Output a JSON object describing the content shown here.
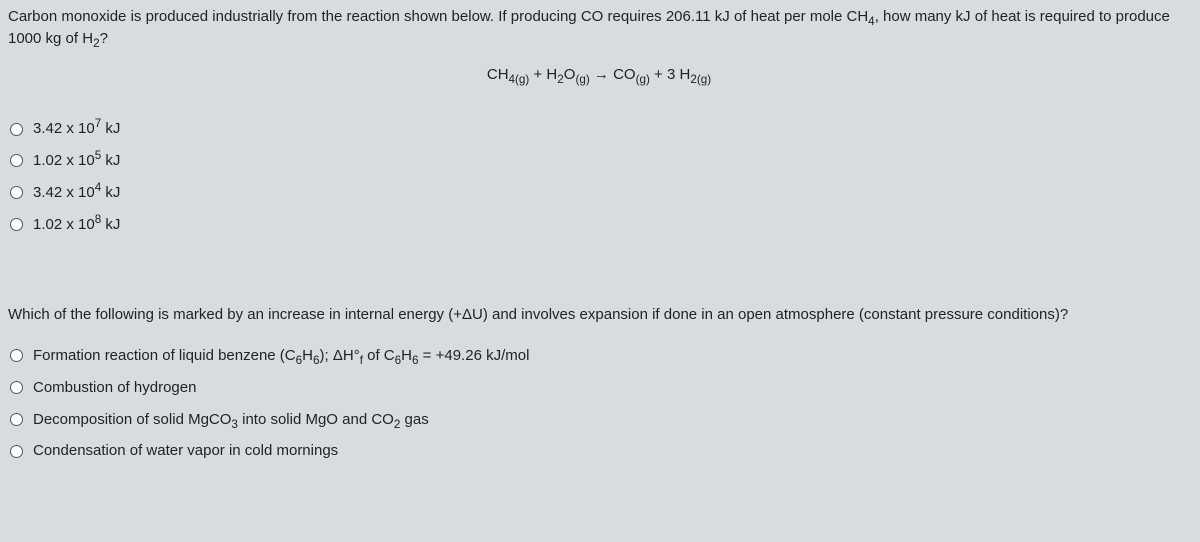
{
  "background_color": "#d9dcdf",
  "text_color": "#222222",
  "font_size_pt": 11,
  "q1": {
    "prompt_html": "Carbon monoxide is produced industrially from the reaction shown below. If producing CO requires 206.11 kJ of heat per mole CH<sub>4</sub>, how many kJ of heat is required to produce 1000 kg of H<sub>2</sub>?",
    "equation_html": "CH<sub>4(g)</sub> + H<sub>2</sub>O<sub>(g)</sub> &rarr; CO<sub>(g)</sub> + 3 H<sub>2(g)</sub>",
    "options": [
      "3.42 x 10<sup>7</sup> kJ",
      "1.02 x 10<sup>5</sup> kJ",
      "3.42 x 10<sup>4</sup> kJ",
      "1.02 x 10<sup>8</sup> kJ"
    ]
  },
  "q2": {
    "prompt_html": "Which of the following is marked by an increase in internal energy (+&Delta;U) and involves expansion if done in an open atmosphere (constant pressure conditions)?",
    "options": [
      "Formation reaction of liquid benzene (C<sub>6</sub>H<sub>6</sub>); &Delta;H&deg;<sub>f</sub> of C<sub>6</sub>H<sub>6</sub> = +49.26 kJ/mol",
      "Combustion of hydrogen",
      "Decomposition of solid MgCO<sub>3</sub> into solid MgO and CO<sub>2</sub> gas",
      "Condensation of water vapor in cold mornings"
    ]
  }
}
